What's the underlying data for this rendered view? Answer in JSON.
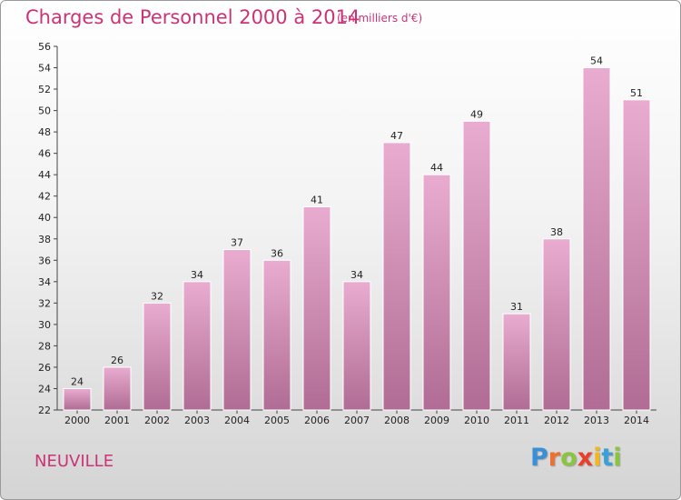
{
  "header": {
    "title": "Charges de Personnel 2000 à 2014",
    "subtitle": "(en milliers d'€)"
  },
  "footer": {
    "commune": "NEUVILLE",
    "logo_letters": [
      "P",
      "r",
      "o",
      "x",
      "i",
      "t",
      "i"
    ],
    "logo_colors": [
      "#3a8fd6",
      "#ef6f2e",
      "#8bc53f",
      "#e8402b",
      "#f2b71c",
      "#3aa0d8",
      "#8bc53f"
    ]
  },
  "colors": {
    "bar_top": "#e9acd0",
    "bar_bottom": "#b06c94",
    "text_accent": "#cc3377"
  },
  "chart_data": {
    "type": "bar",
    "title": "Charges de Personnel 2000 à 2014",
    "subtitle": "(en milliers d'€)",
    "xlabel": "",
    "ylabel": "",
    "categories": [
      "2000",
      "2001",
      "2002",
      "2003",
      "2004",
      "2005",
      "2006",
      "2007",
      "2008",
      "2009",
      "2010",
      "2011",
      "2012",
      "2013",
      "2014"
    ],
    "values": [
      24,
      26,
      32,
      34,
      37,
      36,
      41,
      34,
      47,
      44,
      49,
      31,
      38,
      54,
      51
    ],
    "ylim": [
      22,
      56
    ],
    "yticks": [
      22,
      24,
      26,
      28,
      30,
      32,
      34,
      36,
      38,
      40,
      42,
      44,
      46,
      48,
      50,
      52,
      54,
      56
    ],
    "grid": false,
    "legend": "none"
  }
}
